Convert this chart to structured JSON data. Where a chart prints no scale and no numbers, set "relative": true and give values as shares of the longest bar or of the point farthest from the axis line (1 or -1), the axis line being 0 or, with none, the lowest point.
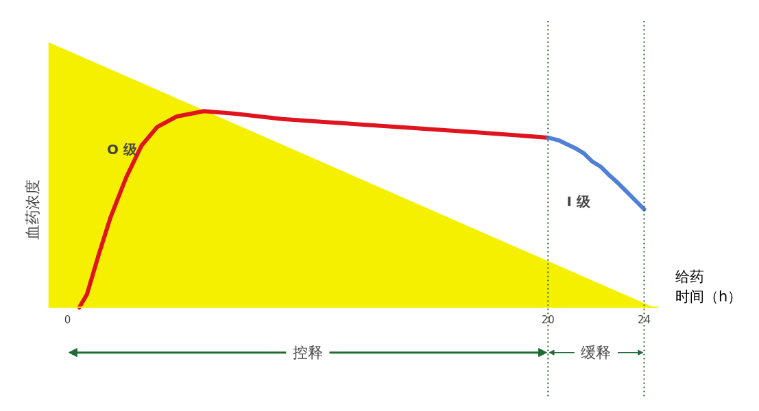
{
  "chart_data": {
    "type": "line",
    "relative": true,
    "ylabel": "血药浓度",
    "xlabel": "给药时间（h）",
    "xlim": [
      -0.8,
      24.6
    ],
    "xticks": [
      0,
      20,
      24
    ],
    "grid": false,
    "marker": "none",
    "line_style": "solid",
    "series": [
      {
        "type": "area",
        "color": "#f5f000",
        "x": [
          -0.8,
          24.4
        ],
        "values": [
          1,
          0
        ]
      },
      {
        "color": "#e0141e",
        "x": [
          0.49,
          0.81,
          1.3,
          1.79,
          2.44,
          3.08,
          3.73,
          4.55,
          5.68,
          6.98,
          8.93,
          10.55,
          13.8,
          17.05,
          20
        ],
        "values": [
          0,
          0.05,
          0.2,
          0.34,
          0.49,
          0.61,
          0.68,
          0.72,
          0.74,
          0.73,
          0.71,
          0.7,
          0.68,
          0.66,
          0.64
        ]
      },
      {
        "type": "line",
        "color": "#4f7fd6",
        "x": [
          20,
          20.44,
          21.14,
          21.5,
          21.84,
          22.2,
          22.53,
          22.9,
          23.23,
          24
        ],
        "values": [
          0.64,
          0.63,
          0.6,
          0.58,
          0.55,
          0.53,
          0.5,
          0.47,
          0.44,
          0.37
        ]
      }
    ],
    "ref_lines": [
      {
        "axis": "x",
        "value": 20,
        "color": "#2e5e2e",
        "line_style": "dotted"
      },
      {
        "axis": "x",
        "value": 24,
        "color": "#2e5e2e",
        "line_style": "dotted"
      }
    ],
    "annotations": [
      "O 级",
      "I 级",
      "控释",
      "缓释"
    ]
  }
}
